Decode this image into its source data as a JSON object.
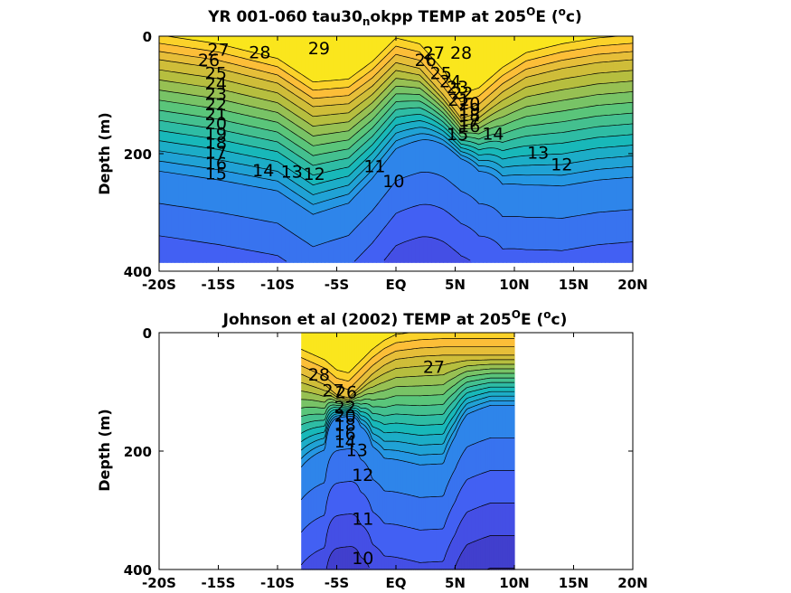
{
  "chart_data": [
    {
      "type": "contour",
      "title_main": "YR 001-060 tau30",
      "title_sub": "n",
      "title_rest": "okpp TEMP at 205",
      "title_sup": "O",
      "title_tail": "E (",
      "title_unit_sup": "o",
      "title_unit": "c)",
      "ylabel": "Depth (m)",
      "xlim": [
        -20,
        20
      ],
      "ylim": [
        0,
        400
      ],
      "y_reversed": true,
      "xticks": [
        -20,
        -15,
        -10,
        -5,
        0,
        5,
        10,
        15,
        20
      ],
      "xtick_labels": [
        "-20S",
        "-15S",
        "-10S",
        "-5S",
        "EQ",
        "5N",
        "10N",
        "15N",
        "20N"
      ],
      "yticks": [
        0,
        200,
        400
      ],
      "ytick_labels": [
        "0",
        "200",
        "400"
      ],
      "data_extent": {
        "x": [
          -20,
          20
        ],
        "depth": [
          0,
          385
        ]
      },
      "colorscale": {
        "min": 9,
        "max": 30
      },
      "profile": {
        "x": [
          -20,
          -15,
          -10,
          -7,
          -4,
          -2,
          0,
          2,
          4,
          5.5,
          7,
          9,
          11,
          14,
          17,
          20
        ],
        "depth_of_26": [
          40,
          55,
          80,
          120,
          115,
          85,
          45,
          55,
          100,
          140,
          130,
          95,
          70,
          55,
          45,
          40
        ],
        "gradient_deg_per_m": [
          0.058,
          0.058,
          0.06,
          0.06,
          0.065,
          0.07,
          0.075,
          0.09,
          0.13,
          0.16,
          0.11,
          0.07,
          0.06,
          0.055,
          0.055,
          0.055
        ]
      },
      "contour_labels": [
        {
          "text": "29",
          "x": -6.5,
          "depth": 20
        },
        {
          "text": "28",
          "x": -11.5,
          "depth": 27
        },
        {
          "text": "27",
          "x": -15,
          "depth": 22
        },
        {
          "text": "26",
          "x": -15.8,
          "depth": 40
        },
        {
          "text": "25",
          "x": -15.2,
          "depth": 62
        },
        {
          "text": "24",
          "x": -15.2,
          "depth": 80
        },
        {
          "text": "23",
          "x": -15.2,
          "depth": 98
        },
        {
          "text": "22",
          "x": -15.2,
          "depth": 115
        },
        {
          "text": "21",
          "x": -15.2,
          "depth": 132
        },
        {
          "text": "20",
          "x": -15.2,
          "depth": 148
        },
        {
          "text": "19",
          "x": -15.2,
          "depth": 165
        },
        {
          "text": "18",
          "x": -15.2,
          "depth": 181
        },
        {
          "text": "17",
          "x": -15.2,
          "depth": 197
        },
        {
          "text": "16",
          "x": -15.2,
          "depth": 216
        },
        {
          "text": "15",
          "x": -15.2,
          "depth": 233
        },
        {
          "text": "14",
          "x": -11.2,
          "depth": 228
        },
        {
          "text": "13",
          "x": -8.8,
          "depth": 230
        },
        {
          "text": "12",
          "x": -6.9,
          "depth": 234
        },
        {
          "text": "11",
          "x": -1.8,
          "depth": 221
        },
        {
          "text": "10",
          "x": -0.2,
          "depth": 246
        },
        {
          "text": "28",
          "x": 5.5,
          "depth": 28
        },
        {
          "text": "27",
          "x": 3.2,
          "depth": 28
        },
        {
          "text": "26",
          "x": 2.5,
          "depth": 40
        },
        {
          "text": "25",
          "x": 3.8,
          "depth": 62
        },
        {
          "text": "24",
          "x": 4.6,
          "depth": 76
        },
        {
          "text": "23",
          "x": 5.2,
          "depth": 86
        },
        {
          "text": "22",
          "x": 5.6,
          "depth": 96
        },
        {
          "text": "21",
          "x": 5.3,
          "depth": 108
        },
        {
          "text": "20",
          "x": 6.2,
          "depth": 114
        },
        {
          "text": "19",
          "x": 6.2,
          "depth": 124
        },
        {
          "text": "18",
          "x": 6.2,
          "depth": 134
        },
        {
          "text": "17",
          "x": 6.2,
          "depth": 143
        },
        {
          "text": "16",
          "x": 6.2,
          "depth": 152
        },
        {
          "text": "15",
          "x": 5.2,
          "depth": 166
        },
        {
          "text": "14",
          "x": 8.2,
          "depth": 165
        },
        {
          "text": "13",
          "x": 12,
          "depth": 198
        },
        {
          "text": "12",
          "x": 14,
          "depth": 218
        }
      ]
    },
    {
      "type": "contour",
      "title_main": "Johnson et al (2002) TEMP at 205",
      "title_sup": "O",
      "title_tail": "E (",
      "title_unit_sup": "o",
      "title_unit": "c)",
      "ylabel": "Depth (m)",
      "xlim": [
        -20,
        20
      ],
      "ylim": [
        0,
        400
      ],
      "y_reversed": true,
      "xticks": [
        -20,
        -15,
        -10,
        -5,
        0,
        5,
        10,
        15,
        20
      ],
      "xtick_labels": [
        "-20S",
        "-15S",
        "-10S",
        "-5S",
        "EQ",
        "5N",
        "10N",
        "15N",
        "20N"
      ],
      "yticks": [
        0,
        200,
        400
      ],
      "ytick_labels": [
        "0",
        "200",
        "400"
      ],
      "data_extent": {
        "x": [
          -8,
          10
        ],
        "depth": [
          0,
          400
        ]
      },
      "colorscale": {
        "min": 9,
        "max": 30
      },
      "profile": {
        "x": [
          -8,
          -6,
          -5,
          -4,
          -3,
          -2,
          -1,
          0,
          2,
          4,
          5,
          6,
          8,
          10
        ],
        "depth_of_26": [
          70,
          88,
          105,
          110,
          90,
          70,
          55,
          45,
          40,
          38,
          38,
          38,
          38,
          38
        ],
        "gradient_deg_per_m": [
          0.07,
          0.1,
          0.28,
          0.35,
          0.16,
          0.09,
          0.07,
          0.065,
          0.06,
          0.06,
          0.08,
          0.11,
          0.13,
          0.13
        ]
      },
      "contour_labels": [
        {
          "text": "28",
          "x": -6.5,
          "depth": 70
        },
        {
          "text": "27",
          "x": -5.3,
          "depth": 97
        },
        {
          "text": "26",
          "x": -4.2,
          "depth": 100
        },
        {
          "text": "27",
          "x": 3.2,
          "depth": 57
        },
        {
          "text": "22",
          "x": -4.3,
          "depth": 125
        },
        {
          "text": "20",
          "x": -4.3,
          "depth": 140
        },
        {
          "text": "18",
          "x": -4.3,
          "depth": 155
        },
        {
          "text": "16",
          "x": -4.3,
          "depth": 170
        },
        {
          "text": "14",
          "x": -4.3,
          "depth": 183
        },
        {
          "text": "13",
          "x": -3.3,
          "depth": 198
        },
        {
          "text": "12",
          "x": -2.8,
          "depth": 240
        },
        {
          "text": "11",
          "x": -2.8,
          "depth": 314
        },
        {
          "text": "10",
          "x": -2.8,
          "depth": 380
        }
      ]
    }
  ]
}
